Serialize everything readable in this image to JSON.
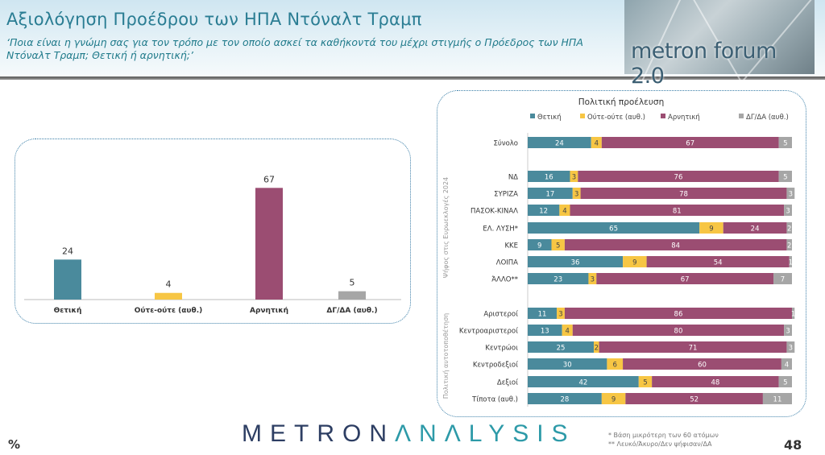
{
  "header": {
    "title": "Αξιολόγηση Προέδρου των ΗΠΑ Ντόναλτ Τραμπ",
    "subtitle": "‘Ποια είναι η γνώμη σας για τον τρόπο με τον οποίο ασκεί τα καθήκοντά του μέχρι στιγμής ο Πρόεδρος των ΗΠΑ Ντόναλτ Τραμπ; Θετική ή αρνητική;’",
    "logo_text": "metron forum 2.0"
  },
  "colors": {
    "positive": "#4a8a9c",
    "neutral": "#f7c644",
    "negative": "#9b4d72",
    "dk": "#a6a6a6",
    "title": "#2a7d93"
  },
  "chart_data": [
    {
      "type": "bar",
      "title": "",
      "categories": [
        "Θετική",
        "Ούτε-ούτε (αυθ.)",
        "Αρνητική",
        "ΔΓ/ΔΑ (αυθ.)"
      ],
      "values": [
        24,
        4,
        67,
        5
      ],
      "ylim": [
        0,
        70
      ]
    },
    {
      "type": "stacked-bar-horizontal",
      "title": "Πολιτική προέλευση",
      "legend_position": "top",
      "series_names": [
        "Θετική",
        "Ούτε-ούτε (αυθ.)",
        "Αρνητική",
        "ΔΓ/ΔΑ (αυθ.)"
      ],
      "groups": [
        {
          "label": "",
          "rows": [
            {
              "label": "Σύνολο",
              "values": [
                24,
                4,
                67,
                5
              ]
            }
          ]
        },
        {
          "label": "Ψήφος στις Ευρωεκλογές 2024",
          "rows": [
            {
              "label": "ΝΔ",
              "values": [
                16,
                3,
                76,
                5
              ]
            },
            {
              "label": "ΣΥΡΙΖΑ",
              "values": [
                17,
                3,
                78,
                3
              ]
            },
            {
              "label": "ΠΑΣΟΚ-ΚΙΝΑΛ",
              "values": [
                12,
                4,
                81,
                3
              ]
            },
            {
              "label": "ΕΛ. ΛΥΣΗ*",
              "values": [
                65,
                9,
                24,
                2
              ]
            },
            {
              "label": "ΚΚΕ",
              "values": [
                9,
                5,
                84,
                2
              ]
            },
            {
              "label": "ΛΟΙΠΑ",
              "values": [
                36,
                9,
                54,
                1
              ]
            },
            {
              "label": "ΆΛΛΟ**",
              "values": [
                23,
                3,
                67,
                7
              ]
            }
          ]
        },
        {
          "label": "Πολιτική αυτοτοποθέτηση",
          "rows": [
            {
              "label": "Αριστεροί",
              "values": [
                11,
                3,
                86,
                1
              ]
            },
            {
              "label": "Κεντροαριστεροί",
              "values": [
                13,
                4,
                80,
                3
              ]
            },
            {
              "label": "Κεντρώοι",
              "values": [
                25,
                2,
                71,
                3
              ]
            },
            {
              "label": "Κεντροδεξιοί",
              "values": [
                30,
                6,
                60,
                4
              ]
            },
            {
              "label": "Δεξιοί",
              "values": [
                42,
                5,
                48,
                5
              ]
            },
            {
              "label": "Τίποτα (αυθ.)",
              "values": [
                28,
                9,
                52,
                11
              ]
            }
          ]
        }
      ],
      "xlim": [
        0,
        100
      ]
    }
  ],
  "footer": {
    "unit": "%",
    "brand_a": "METRON",
    "brand_b": "ΛNΛLYSIS",
    "note1": "*  Βάση μικρότερη των 60 ατόμων",
    "note2": "** Λευκό/Άκυρο/Δεν ψήφισαν/ΔΑ",
    "page": "48"
  }
}
